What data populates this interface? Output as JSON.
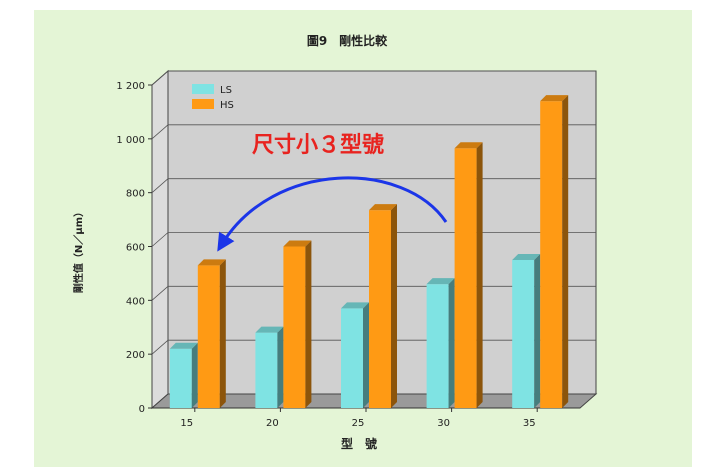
{
  "chart_data": {
    "type": "bar",
    "title": "圖9　剛性比較",
    "xlabel": "型　號",
    "ylabel": "剛性值（N／μm）",
    "categories": [
      "15",
      "20",
      "25",
      "30",
      "35"
    ],
    "series": [
      {
        "name": "LS",
        "values": [
          220,
          280,
          370,
          460,
          550
        ],
        "color": "#7fe3e3"
      },
      {
        "name": "HS",
        "values": [
          530,
          600,
          735,
          965,
          1140
        ],
        "color": "#ff9a14"
      }
    ],
    "ylim": [
      0,
      1200
    ],
    "yticks": [
      0,
      200,
      400,
      600,
      800,
      1000,
      1200
    ],
    "ytick_labels": [
      "0",
      "200",
      "400",
      "600",
      "800",
      "1 000",
      "1 200"
    ],
    "legend_position": "top-left",
    "grid": true,
    "annotation": {
      "text": "尺寸小３型號",
      "text_color": "#e8231f",
      "arrow_color": "#1b35e8",
      "from_category": "30",
      "to_category": "15"
    }
  }
}
